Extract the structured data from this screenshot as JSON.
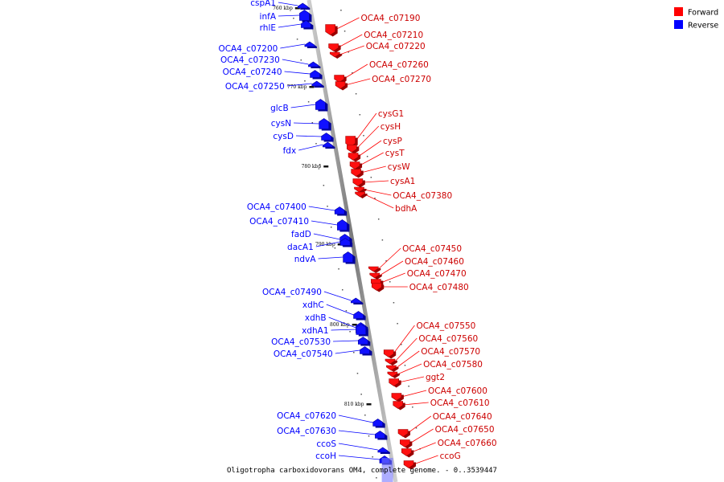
{
  "caption": "Oligotropha carboxidovorans OM4, complete genome. - 0..3539447",
  "legend": [
    {
      "label": "Forward",
      "color": "#ff0000"
    },
    {
      "label": "Reverse",
      "color": "#0000ff"
    }
  ],
  "ticks": [
    "760 kbp",
    "770 kbp",
    "780 kbp",
    "790 kbp",
    "800 kbp",
    "810 kbp"
  ],
  "reverse_genes": [
    {
      "name": "cspA1",
      "size": "s"
    },
    {
      "name": "infA",
      "size": "l"
    },
    {
      "name": "rhlE",
      "size": "m"
    },
    {
      "name": "OCA4_c07200",
      "size": "s"
    },
    {
      "name": "OCA4_c07230",
      "size": "s"
    },
    {
      "name": "OCA4_c07240",
      "size": "m"
    },
    {
      "name": "OCA4_c07250",
      "size": "s"
    },
    {
      "name": "glcB",
      "size": "l"
    },
    {
      "name": "cysN",
      "size": "l"
    },
    {
      "name": "cysD",
      "size": "m"
    },
    {
      "name": "fdx",
      "size": "s"
    },
    {
      "name": "OCA4_c07400",
      "size": "m"
    },
    {
      "name": "OCA4_c07410",
      "size": "l"
    },
    {
      "name": "fadD",
      "size": "l"
    },
    {
      "name": "dacA1",
      "size": "m"
    },
    {
      "name": "ndvA",
      "size": "l"
    },
    {
      "name": "OCA4_c07490",
      "size": "s"
    },
    {
      "name": "xdhC",
      "size": "m"
    },
    {
      "name": "xdhB",
      "size": "l"
    },
    {
      "name": "xdhA1",
      "size": "l"
    },
    {
      "name": "OCA4_c07530",
      "size": "m"
    },
    {
      "name": "OCA4_c07540",
      "size": "m"
    },
    {
      "name": "OCA4_c07620",
      "size": "m"
    },
    {
      "name": "OCA4_c07630",
      "size": "m"
    },
    {
      "name": "ccoS",
      "size": "s"
    },
    {
      "name": "ccoH",
      "size": "m"
    }
  ],
  "forward_genes": [
    {
      "name": "OCA4_c07190",
      "size": "l"
    },
    {
      "name": "OCA4_c07210",
      "size": "m"
    },
    {
      "name": "OCA4_c07220",
      "size": "s"
    },
    {
      "name": "OCA4_c07260",
      "size": "m"
    },
    {
      "name": "OCA4_c07270",
      "size": "m"
    },
    {
      "name": "cysG1",
      "size": "l"
    },
    {
      "name": "cysH",
      "size": "m"
    },
    {
      "name": "cysP",
      "size": "m"
    },
    {
      "name": "cysT",
      "size": "m"
    },
    {
      "name": "cysW",
      "size": "m"
    },
    {
      "name": "cysA1",
      "size": "m"
    },
    {
      "name": "OCA4_c07380",
      "size": "s"
    },
    {
      "name": "bdhA",
      "size": "s"
    },
    {
      "name": "OCA4_c07450",
      "size": "s"
    },
    {
      "name": "OCA4_c07460",
      "size": "s"
    },
    {
      "name": "OCA4_c07470",
      "size": "m"
    },
    {
      "name": "OCA4_c07480",
      "size": "m"
    },
    {
      "name": "OCA4_c07550",
      "size": "m"
    },
    {
      "name": "OCA4_c07560",
      "size": "s"
    },
    {
      "name": "OCA4_c07570",
      "size": "s"
    },
    {
      "name": "OCA4_c07580",
      "size": "s"
    },
    {
      "name": "ggt2",
      "size": "m"
    },
    {
      "name": "OCA4_c07600",
      "size": "m"
    },
    {
      "name": "OCA4_c07610",
      "size": "m"
    },
    {
      "name": "OCA4_c07640",
      "size": "m"
    },
    {
      "name": "OCA4_c07650",
      "size": "m"
    },
    {
      "name": "OCA4_c07660",
      "size": "m"
    },
    {
      "name": "ccoG",
      "size": "m"
    }
  ]
}
